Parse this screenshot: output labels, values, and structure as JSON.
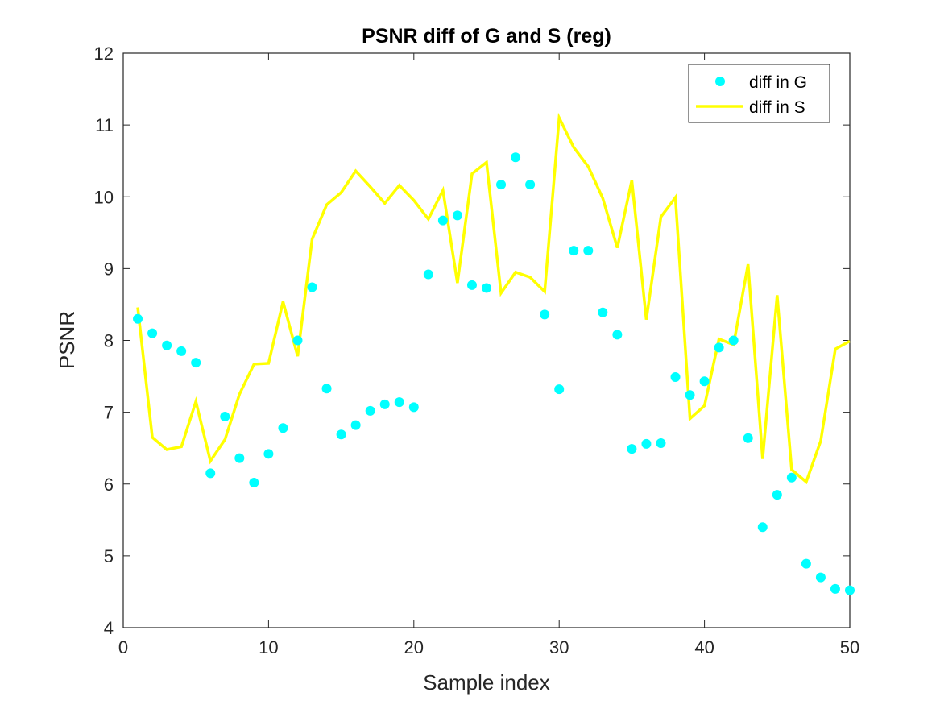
{
  "chart_data": {
    "type": "line",
    "title": "PSNR diff of G and S (reg)",
    "xlabel": "Sample index",
    "ylabel": "PSNR",
    "xlim": [
      0,
      50
    ],
    "ylim": [
      4,
      12
    ],
    "xticks": [
      0,
      10,
      20,
      30,
      40,
      50
    ],
    "yticks": [
      4,
      5,
      6,
      7,
      8,
      9,
      10,
      11,
      12
    ],
    "grid": false,
    "legend_position": "top-right",
    "series": [
      {
        "name": "diff in G",
        "style": "markers",
        "color": "#00ffff",
        "x": [
          1,
          2,
          3,
          4,
          5,
          6,
          7,
          8,
          9,
          10,
          11,
          12,
          13,
          14,
          15,
          16,
          17,
          18,
          19,
          20,
          21,
          22,
          23,
          24,
          25,
          26,
          27,
          28,
          29,
          30,
          31,
          32,
          33,
          34,
          35,
          36,
          37,
          38,
          39,
          40,
          41,
          42,
          43,
          44,
          45,
          46,
          47,
          48,
          49,
          50
        ],
        "y": [
          8.3,
          8.1,
          7.93,
          7.85,
          7.69,
          6.15,
          6.94,
          6.36,
          6.02,
          6.42,
          6.78,
          8.0,
          8.74,
          7.33,
          6.69,
          6.82,
          7.02,
          7.11,
          7.14,
          7.07,
          8.92,
          9.67,
          9.74,
          8.77,
          8.73,
          10.17,
          10.55,
          10.17,
          8.36,
          7.32,
          9.25,
          9.25,
          8.39,
          8.08,
          6.49,
          6.56,
          6.57,
          7.49,
          7.24,
          7.43,
          7.9,
          8.0,
          6.64,
          5.4,
          5.85,
          6.09,
          4.89,
          4.7,
          4.54,
          4.52
        ]
      },
      {
        "name": "diff in S",
        "style": "line",
        "color": "#ffff00",
        "x": [
          1,
          2,
          3,
          4,
          5,
          6,
          7,
          8,
          9,
          10,
          11,
          12,
          13,
          14,
          15,
          16,
          17,
          18,
          19,
          20,
          21,
          22,
          23,
          24,
          25,
          26,
          27,
          28,
          29,
          30,
          31,
          32,
          33,
          34,
          35,
          36,
          37,
          38,
          39,
          40,
          41,
          42,
          43,
          44,
          45,
          46,
          47,
          48,
          49,
          50
        ],
        "y": [
          8.46,
          6.65,
          6.48,
          6.52,
          7.15,
          6.32,
          6.62,
          7.25,
          7.67,
          7.68,
          8.54,
          7.78,
          9.41,
          9.89,
          10.06,
          10.36,
          10.14,
          9.91,
          10.16,
          9.95,
          9.69,
          10.09,
          8.8,
          10.32,
          10.48,
          8.66,
          8.95,
          8.88,
          8.68,
          11.1,
          10.69,
          10.42,
          9.98,
          9.29,
          10.23,
          8.29,
          9.72,
          9.99,
          6.91,
          7.09,
          8.02,
          7.94,
          9.06,
          6.35,
          8.63,
          6.2,
          6.03,
          6.6,
          7.88,
          7.99
        ]
      }
    ]
  }
}
